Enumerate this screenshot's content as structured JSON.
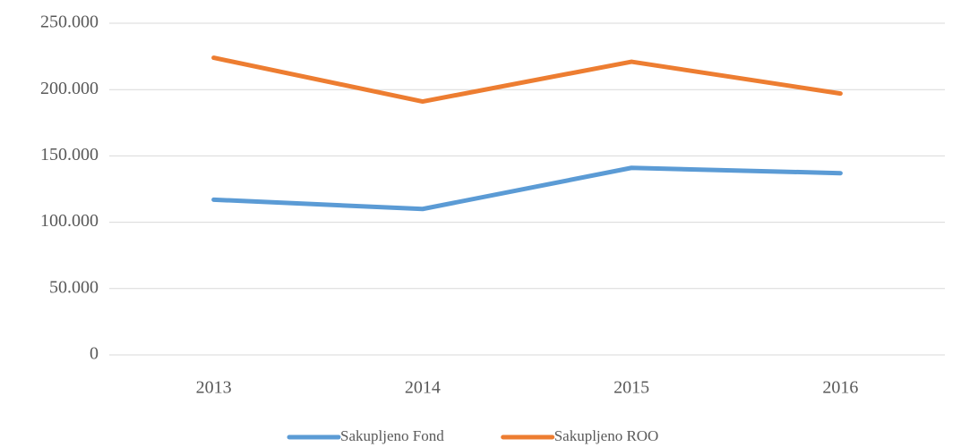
{
  "chart_data": {
    "type": "line",
    "categories": [
      "2013",
      "2014",
      "2015",
      "2016"
    ],
    "series": [
      {
        "name": "Sakupljeno Fond",
        "color": "#5b9bd5",
        "values": [
          117000,
          110000,
          141000,
          137000
        ]
      },
      {
        "name": "Sakupljeno ROO",
        "color": "#ed7d31",
        "values": [
          224000,
          191000,
          221000,
          197000
        ]
      }
    ],
    "ylim": [
      0,
      250000
    ],
    "yticks": [
      0,
      {
        "value": 50000,
        "label": "50.000"
      },
      {
        "value": 100000,
        "label": "100.000"
      },
      {
        "value": 150000,
        "label": "150.000"
      },
      {
        "value": 200000,
        "label": "200.000"
      },
      {
        "value": 250000,
        "label": "250.000"
      }
    ],
    "grid": true,
    "legend": "bottom"
  }
}
